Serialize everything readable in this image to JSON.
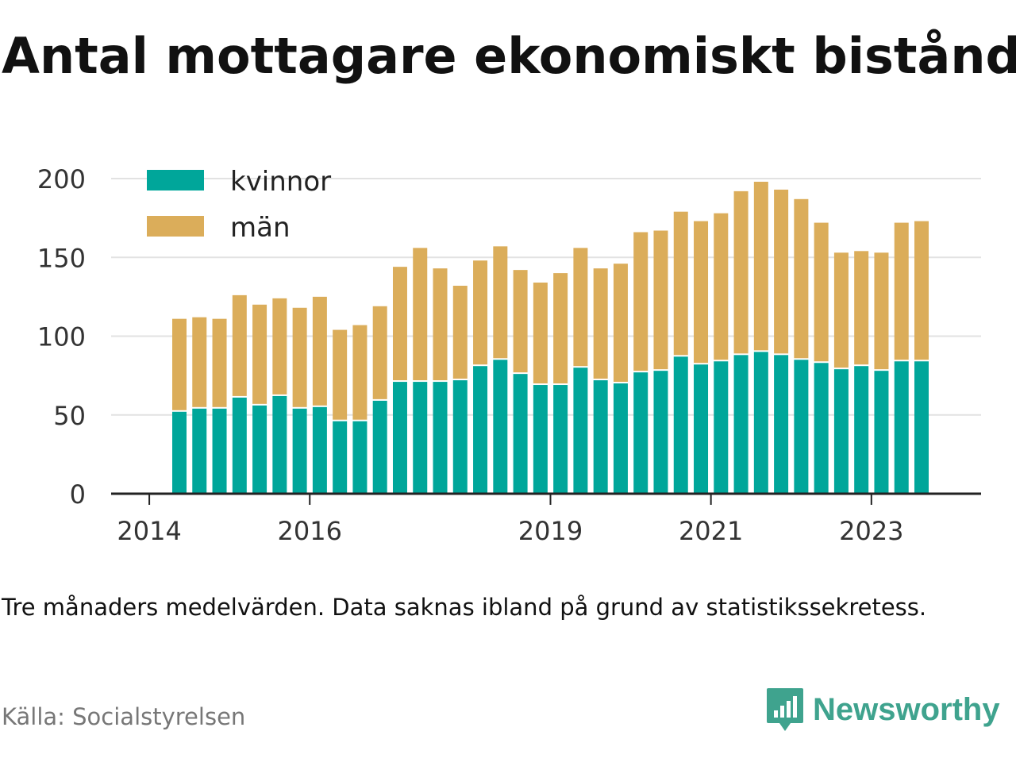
{
  "title": "Antal mottagare ekonomiskt bistånd",
  "note": "Tre månaders medelvärden. Data saknas ibland på grund av statistikssekretess.",
  "source": "Källa: Socialstyrelsen",
  "brand": {
    "name": "Newsworthy",
    "icon": "newsworthy-logo-icon",
    "color": "#3fa38e"
  },
  "chart_data": {
    "type": "bar",
    "stacked": true,
    "categories": [
      "2014-Q2",
      "2014-Q3",
      "2014-Q4",
      "2015-Q1",
      "2015-Q2",
      "2015-Q3",
      "2015-Q4",
      "2016-Q1",
      "2016-Q2",
      "2016-Q3",
      "2016-Q4",
      "2017-Q1",
      "2017-Q2",
      "2017-Q3",
      "2017-Q4",
      "2018-Q1",
      "2018-Q2",
      "2018-Q3",
      "2018-Q4",
      "2019-Q1",
      "2019-Q2",
      "2019-Q3",
      "2019-Q4",
      "2020-Q1",
      "2020-Q2",
      "2020-Q3",
      "2020-Q4",
      "2021-Q1",
      "2021-Q2",
      "2021-Q3",
      "2021-Q4",
      "2022-Q1",
      "2022-Q2",
      "2022-Q3",
      "2022-Q4",
      "2023-Q1",
      "2023-Q2",
      "2023-Q3"
    ],
    "series": [
      {
        "name": "kvinnor",
        "color": "#00a69a",
        "values": [
          52,
          54,
          54,
          61,
          56,
          62,
          54,
          55,
          46,
          46,
          59,
          71,
          71,
          71,
          72,
          81,
          85,
          76,
          69,
          69,
          80,
          72,
          70,
          77,
          78,
          87,
          82,
          84,
          88,
          90,
          88,
          85,
          83,
          79,
          81,
          78,
          84,
          84
        ]
      },
      {
        "name": "män",
        "color": "#dbad5a",
        "values": [
          59,
          58,
          57,
          65,
          64,
          62,
          64,
          70,
          58,
          61,
          60,
          73,
          85,
          72,
          60,
          67,
          72,
          66,
          65,
          71,
          76,
          71,
          76,
          89,
          89,
          92,
          91,
          94,
          104,
          108,
          105,
          102,
          89,
          74,
          73,
          75,
          88,
          89
        ]
      }
    ],
    "x_tick_labels": [
      "2014",
      "2016",
      "2019",
      "2021",
      "2023"
    ],
    "y_ticks": [
      0,
      50,
      100,
      150,
      200
    ],
    "ylim": [
      0,
      200
    ],
    "grid": true,
    "legend_position": "top-left"
  }
}
